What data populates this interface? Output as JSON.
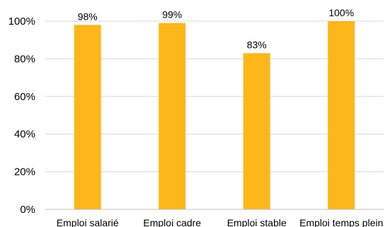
{
  "chart_data": {
    "type": "bar",
    "title": "",
    "xlabel": "",
    "ylabel": "",
    "categories": [
      "Emploi salarié",
      "Emploi cadre",
      "Emploi stable",
      "Emploi temps plein"
    ],
    "values": [
      98,
      99,
      83,
      100
    ],
    "data_labels": [
      "98%",
      "99%",
      "83%",
      "100%"
    ],
    "ylim": [
      0,
      100
    ],
    "yticks": [
      0,
      20,
      40,
      60,
      80,
      100
    ],
    "ytick_labels": [
      "0%",
      "20%",
      "40%",
      "60%",
      "80%",
      "100%"
    ],
    "grid": true,
    "legend": "none",
    "colors": {
      "bar": "#FDB71A",
      "grid": "#d9d9d9",
      "axis": "#bfbfbf",
      "text": "#000000"
    }
  }
}
